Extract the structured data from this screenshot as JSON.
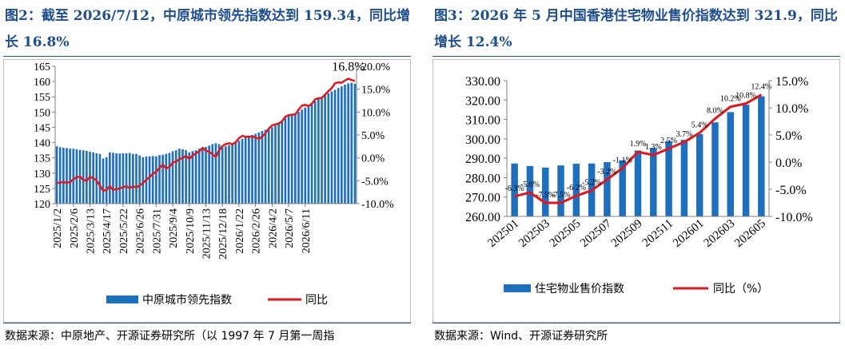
{
  "left": {
    "title": "图2：截至 2026/7/12，中原城市领先指数达到 159.34，同比增长 16.8%",
    "source": "数据来源：中原地产、开源证券研究所（以 1997 年 7 月第一周指",
    "annotation": "16.8%",
    "colors": {
      "bar": "#1f6fbf",
      "line": "#e3161b"
    },
    "chart_data": {
      "type": "bar+line",
      "x_ticks": [
        "2025/1/2",
        "2025/2/6",
        "2025/3/13",
        "2025/4/17",
        "2025/5/22",
        "2025/6/26",
        "2025/7/31",
        "2025/9/4",
        "2025/10/9",
        "2025/11/13",
        "2025/12/18",
        "2026/1/22",
        "2026/2/26",
        "2026/4/2",
        "2026/5/7",
        "2026/6/11"
      ],
      "periods_per_tick": 5,
      "left_axis": {
        "min": 120,
        "max": 165,
        "ticks": [
          "120",
          "125",
          "130",
          "135",
          "140",
          "145",
          "150",
          "155",
          "160",
          "165"
        ]
      },
      "right_axis": {
        "min": -10,
        "max": 20,
        "ticks": [
          "-10.0%",
          "-5.0%",
          "0.0%",
          "5.0%",
          "10.0%",
          "15.0%",
          "20.0%"
        ]
      },
      "series": [
        {
          "name": "中原城市领先指数",
          "axis": "left",
          "style": "bar",
          "values": [
            138.8,
            138.5,
            138.3,
            138.2,
            138.0,
            138.0,
            137.8,
            137.6,
            137.5,
            137.3,
            137.0,
            136.8,
            136.5,
            136.3,
            134.8,
            135.2,
            136.8,
            136.7,
            136.5,
            136.4,
            136.5,
            136.5,
            136.6,
            136.3,
            136.3,
            135.8,
            135.2,
            135.4,
            135.5,
            135.6,
            135.5,
            135.9,
            136.0,
            136.3,
            136.6,
            137.2,
            137.5,
            138.0,
            137.8,
            137.5,
            136.8,
            137.2,
            137.5,
            138.0,
            138.3,
            138.6,
            139.0,
            139.5,
            139.8,
            139.5,
            138.5,
            138.8,
            139.2,
            139.8,
            140.2,
            140.6,
            141.2,
            141.8,
            142.3,
            142.5,
            142.9,
            143.3,
            143.8,
            144.2,
            144.6,
            145.0,
            145.6,
            146.3,
            147.0,
            148.0,
            149.3,
            149.5,
            149.6,
            150.0,
            150.8,
            151.5,
            152.3,
            153.0,
            153.6,
            154.2,
            154.8,
            155.6,
            156.2,
            156.8,
            157.3,
            157.9,
            158.4,
            159.0,
            159.4,
            159.6,
            159.3
          ]
        },
        {
          "name": "同比",
          "axis": "right",
          "style": "line",
          "values": [
            -5.5,
            -5.4,
            -5.3,
            -5.4,
            -5.3,
            -4.7,
            -4.2,
            -4.1,
            -4.8,
            -5.0,
            -4.2,
            -4.4,
            -5.0,
            -6.0,
            -7.2,
            -7.0,
            -6.2,
            -7.0,
            -6.8,
            -6.7,
            -6.4,
            -6.2,
            -6.6,
            -6.2,
            -6.5,
            -6.0,
            -5.5,
            -4.8,
            -4.2,
            -3.5,
            -3.0,
            -2.2,
            -1.5,
            -2.3,
            -2.0,
            -1.0,
            -0.8,
            -0.3,
            0.0,
            0.4,
            -0.2,
            0.5,
            1.0,
            1.4,
            2.2,
            1.6,
            1.3,
            0.8,
            0.2,
            1.6,
            2.6,
            3.0,
            3.2,
            3.0,
            3.4,
            4.3,
            4.8,
            4.6,
            4.6,
            4.7,
            4.4,
            4.2,
            4.6,
            5.4,
            6.4,
            7.1,
            7.3,
            7.5,
            8.0,
            9.0,
            9.3,
            9.4,
            9.5,
            10.5,
            11.4,
            11.6,
            11.3,
            11.8,
            12.8,
            13.0,
            13.1,
            13.8,
            14.6,
            15.2,
            16.3,
            16.5,
            16.4,
            16.9,
            17.3,
            17.0,
            16.8
          ]
        }
      ],
      "legend": [
        "中原城市领先指数",
        "同比"
      ],
      "legend_position": "bottom",
      "grid": false
    }
  },
  "right": {
    "title": "图3：2026 年 5 月中国香港住宅物业售价指数达到 321.9，同比增长 12.4%",
    "source": "数据来源：Wind、开源证券研究所",
    "colors": {
      "bar": "#1f6fbf",
      "line": "#e3161b"
    },
    "chart_data": {
      "type": "bar+line",
      "categories": [
        "202501",
        "202502",
        "202503",
        "202504",
        "202505",
        "202506",
        "202507",
        "202508",
        "202509",
        "202510",
        "202511",
        "202512",
        "202601",
        "202602",
        "202603",
        "202604",
        "202605"
      ],
      "x_tick_labels": [
        "202501",
        "202503",
        "202505",
        "202507",
        "202509",
        "202511",
        "202601",
        "202603",
        "202605"
      ],
      "left_axis": {
        "min": 260,
        "max": 330,
        "ticks": [
          "260.00",
          "270.00",
          "280.00",
          "290.00",
          "300.00",
          "310.00",
          "320.00",
          "330.00"
        ]
      },
      "right_axis": {
        "min": -10,
        "max": 15,
        "ticks": [
          "-10.0%",
          "-5.0%",
          "0.0%",
          "5.0%",
          "10.0%",
          "15.0%"
        ]
      },
      "series": [
        {
          "name": "住宅物业售价指数",
          "axis": "left",
          "style": "bar",
          "values": [
            287.3,
            286.0,
            285.2,
            286.3,
            287.2,
            287.3,
            288.0,
            289.0,
            294.0,
            295.3,
            298.8,
            299.5,
            302.5,
            308.5,
            313.8,
            317.6,
            321.9
          ]
        },
        {
          "name": "同比（%）",
          "axis": "right",
          "style": "line",
          "values": [
            -6.3,
            -5.6,
            -7.5,
            -7.5,
            -6.2,
            -5.2,
            -3.2,
            -1.1,
            1.9,
            1.3,
            2.5,
            3.7,
            5.4,
            8.0,
            10.2,
            10.8,
            12.4
          ],
          "data_labels": [
            "-6.3%",
            "-5.6%",
            "-7.5%",
            "-7.5%",
            "-6.2%",
            "-5.2%",
            "-3.2%",
            "-1.1%",
            "1.9%",
            "1.3%",
            "2.5%",
            "3.7%",
            "5.4%",
            "8.0%",
            "10.2%",
            "10.8%",
            "12.4%"
          ]
        }
      ],
      "legend": [
        "住宅物业售价指数",
        "同比（%）"
      ],
      "legend_position": "bottom",
      "grid": false
    }
  }
}
